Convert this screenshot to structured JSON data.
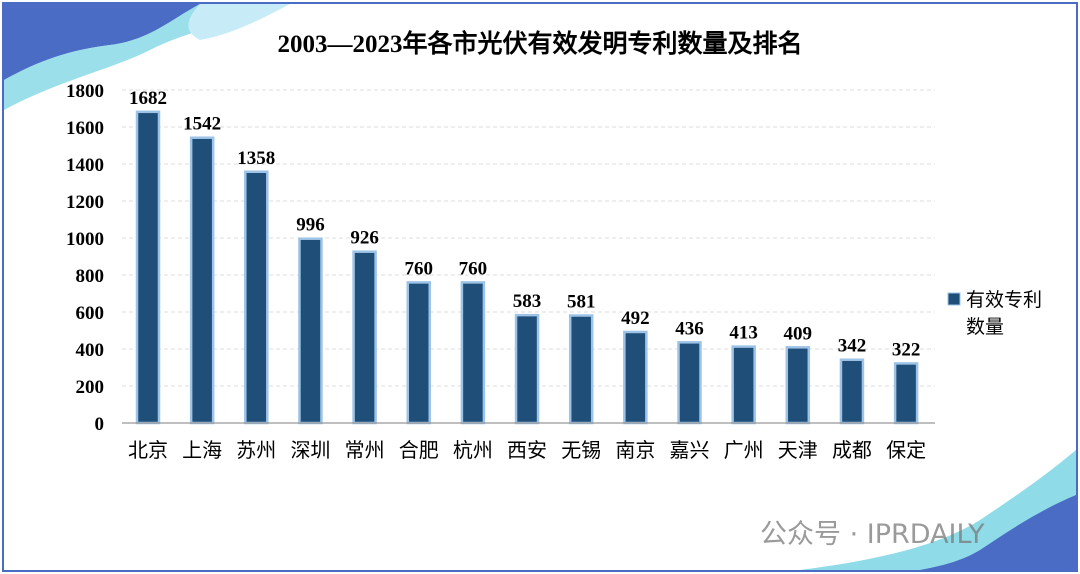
{
  "chart_data": {
    "type": "bar",
    "title": "2003—2023年各市光伏有效发明专利数量及排名",
    "categories": [
      "北京",
      "上海",
      "苏州",
      "深圳",
      "常州",
      "合肥",
      "杭州",
      "西安",
      "无锡",
      "南京",
      "嘉兴",
      "广州",
      "天津",
      "成都",
      "保定"
    ],
    "series": [
      {
        "name": "有效专利数量",
        "values": [
          1682,
          1542,
          1358,
          996,
          926,
          760,
          760,
          583,
          581,
          492,
          436,
          413,
          409,
          342,
          322
        ]
      }
    ],
    "legend_lines": [
      "有效专利",
      "数量"
    ],
    "legend_position": "right",
    "ylim": [
      0,
      1800
    ],
    "yticks": [
      0,
      200,
      400,
      600,
      800,
      1000,
      1200,
      1400,
      1600,
      1800
    ],
    "grid": true,
    "xlabel": "",
    "ylabel": ""
  },
  "colors": {
    "bar": "#1f4e79",
    "bar_edge": "#9dc3e6",
    "frame": "#4a6cc4"
  },
  "watermark": "公众号 · IPRDAILY"
}
